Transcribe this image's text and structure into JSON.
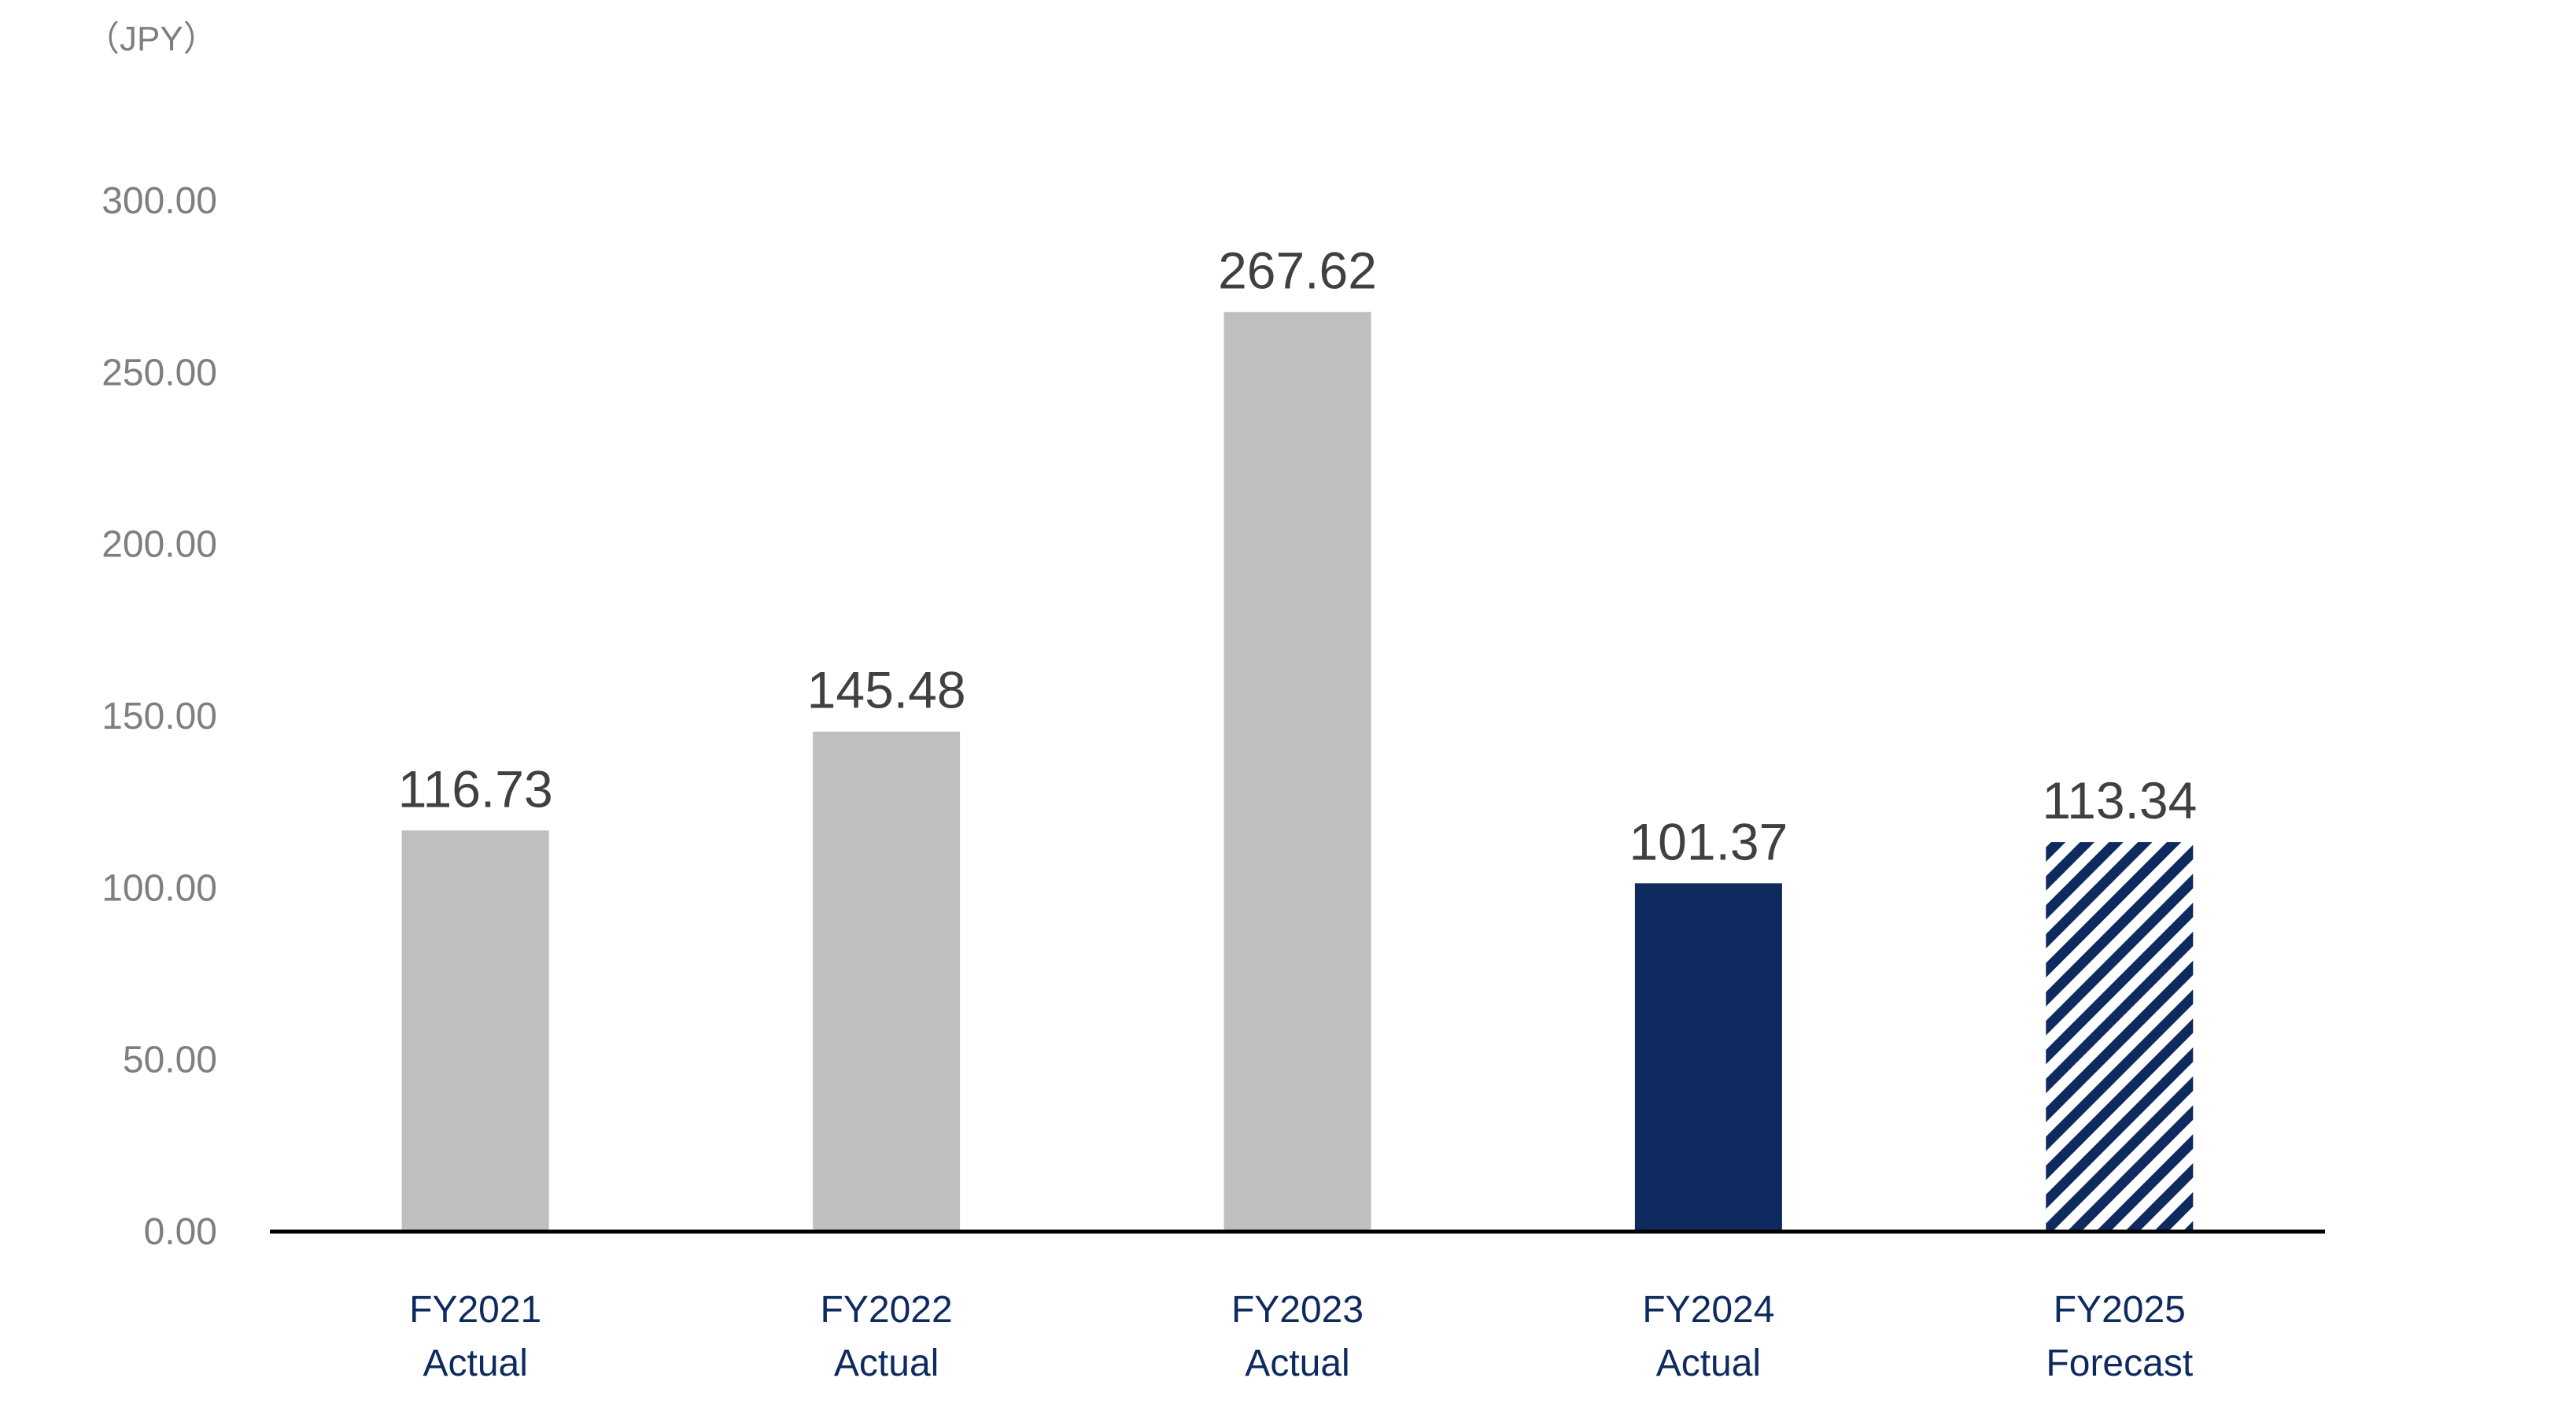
{
  "chart_data": {
    "type": "bar",
    "unit_label": "（JPY）",
    "categories": [
      [
        "FY2021",
        "Actual"
      ],
      [
        "FY2022",
        "Actual"
      ],
      [
        "FY2023",
        "Actual"
      ],
      [
        "FY2024",
        "Actual"
      ],
      [
        "FY2025",
        "Forecast"
      ]
    ],
    "values": [
      116.73,
      145.48,
      267.62,
      101.37,
      113.34
    ],
    "data_labels": [
      "116.73",
      "145.48",
      "267.62",
      "101.37",
      "113.34"
    ],
    "bar_styles": [
      "gray",
      "gray",
      "gray",
      "navy",
      "navy-hatched"
    ],
    "ylim": [
      0,
      300
    ],
    "yticks": [
      "0.00",
      "50.00",
      "100.00",
      "150.00",
      "200.00",
      "250.00",
      "300.00"
    ],
    "grid": false,
    "legend": "none",
    "colors": {
      "gray": "#bfbfbf",
      "navy": "#0e2a5e",
      "axis": "#000000",
      "tick_text": "#7f7f7f",
      "category_text": "#0e2a5e",
      "data_label_text": "#404040"
    }
  }
}
